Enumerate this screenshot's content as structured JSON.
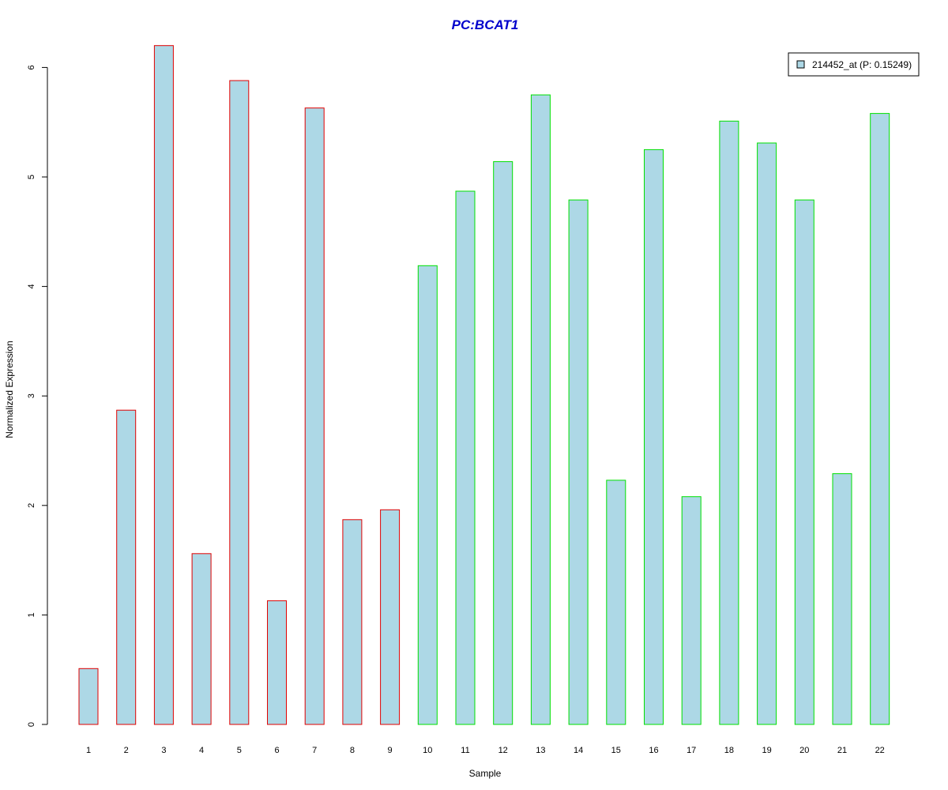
{
  "chart_data": {
    "type": "bar",
    "title": "PC:BCAT1",
    "title_color": "#0000cc",
    "xlabel": "Sample",
    "ylabel": "Normalized Expression",
    "ylim": [
      0,
      6.2
    ],
    "yticks": [
      0,
      1,
      2,
      3,
      4,
      5,
      6
    ],
    "grid": false,
    "legend_position": "top-right",
    "categories": [
      "1",
      "2",
      "3",
      "4",
      "5",
      "6",
      "7",
      "8",
      "9",
      "10",
      "11",
      "12",
      "13",
      "14",
      "15",
      "16",
      "17",
      "18",
      "19",
      "20",
      "21",
      "22"
    ],
    "series": [
      {
        "name": "214452_at (P: 0.15249)",
        "fill_color": "#add8e6",
        "values": [
          0.51,
          2.87,
          6.2,
          1.56,
          5.88,
          1.13,
          5.63,
          1.87,
          1.96,
          4.19,
          4.87,
          5.14,
          5.75,
          4.79,
          2.23,
          5.25,
          2.08,
          5.51,
          5.31,
          4.79,
          2.29,
          5.58
        ]
      }
    ],
    "group_border_colors": [
      "#e00000",
      "#e00000",
      "#e00000",
      "#e00000",
      "#e00000",
      "#e00000",
      "#e00000",
      "#e00000",
      "#e00000",
      "#00e000",
      "#00e000",
      "#00e000",
      "#00e000",
      "#00e000",
      "#00e000",
      "#00e000",
      "#00e000",
      "#00e000",
      "#00e000",
      "#00e000",
      "#00e000",
      "#00e000"
    ]
  }
}
